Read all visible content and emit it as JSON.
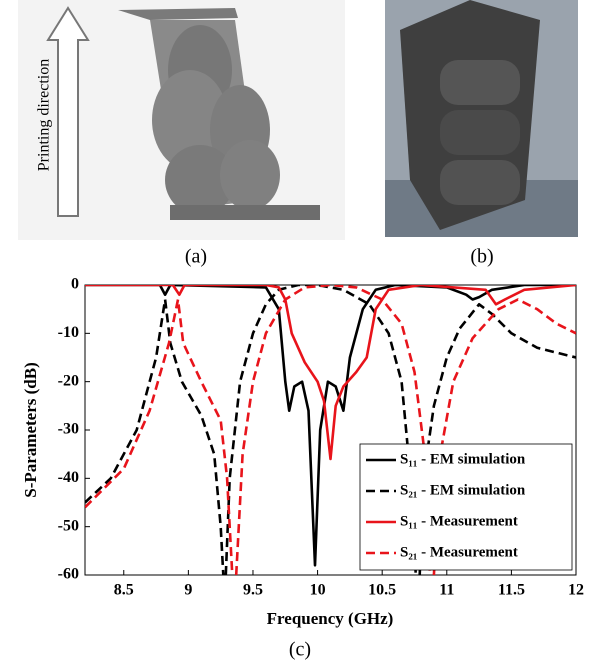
{
  "panels": {
    "printing_direction": "Printing direction",
    "label_a": "(a)",
    "label_b": "(b)",
    "label_c": "(c)"
  },
  "chart_data": {
    "type": "line",
    "x_label": "Frequency (GHz)",
    "y_label": "S-Parameters (dB)",
    "xlim": [
      8.2,
      12
    ],
    "ylim": [
      -60,
      0
    ],
    "xticks": [
      8.5,
      9,
      9.5,
      10,
      10.5,
      11,
      11.5,
      12
    ],
    "yticks": [
      -60,
      -50,
      -40,
      -30,
      -20,
      -10,
      0
    ],
    "legend": "lower-right",
    "series": [
      {
        "name": "S₁₁ - EM simulation",
        "color": "#000000",
        "dashed": false,
        "x": [
          8.2,
          8.78,
          8.82,
          8.86,
          9.6,
          9.7,
          9.75,
          9.78,
          9.82,
          9.88,
          9.93,
          9.98,
          10.02,
          10.08,
          10.14,
          10.2,
          10.25,
          10.35,
          10.45,
          10.6,
          11.0,
          11.15,
          11.2,
          11.25,
          11.35,
          11.6,
          12
        ],
        "values": [
          0,
          0,
          -2,
          0,
          -0.5,
          -5,
          -20,
          -26,
          -21,
          -20,
          -26,
          -58,
          -30,
          -20,
          -21,
          -26,
          -15,
          -5,
          -1,
          0,
          -0.5,
          -2,
          -3,
          -2.5,
          -1,
          0,
          0
        ]
      },
      {
        "name": "S₂₁ - EM simulation",
        "color": "#000000",
        "dashed": true,
        "x": [
          8.2,
          8.4,
          8.6,
          8.75,
          8.82,
          8.86,
          8.95,
          9.1,
          9.2,
          9.25,
          9.27,
          null,
          9.29,
          9.32,
          9.4,
          9.5,
          9.6,
          9.7,
          9.85,
          10.0,
          10.2,
          10.4,
          10.55,
          10.65,
          10.72,
          10.76,
          null,
          10.79,
          10.82,
          10.9,
          11.0,
          11.1,
          11.25,
          11.35,
          11.5,
          11.7,
          12
        ],
        "values": [
          -45,
          -40,
          -30,
          -15,
          -3,
          -12,
          -20,
          -27,
          -35,
          -50,
          -60,
          null,
          -60,
          -40,
          -20,
          -10,
          -4,
          -1,
          0,
          0,
          -1,
          -4,
          -10,
          -20,
          -40,
          -60,
          null,
          -60,
          -40,
          -25,
          -15,
          -9,
          -4,
          -6,
          -10,
          -13,
          -15
        ]
      },
      {
        "name": "S₁₁ - Measurement",
        "color": "#e8141b",
        "dashed": false,
        "x": [
          8.2,
          8.88,
          8.93,
          8.97,
          9.6,
          9.7,
          9.75,
          9.8,
          9.9,
          10.0,
          10.05,
          10.1,
          10.14,
          10.2,
          10.3,
          10.38,
          10.45,
          10.55,
          10.8,
          11.3,
          11.38,
          11.45,
          11.6,
          12
        ],
        "values": [
          0,
          0,
          -2,
          0,
          0,
          -0.5,
          -3,
          -10,
          -16,
          -20,
          -24,
          -36,
          -25,
          -21,
          -18,
          -15,
          -5,
          -1,
          0,
          -1,
          -4,
          -3,
          -1,
          0
        ]
      },
      {
        "name": "S₂₁ - Measurement",
        "color": "#e8141b",
        "dashed": true,
        "x": [
          8.2,
          8.5,
          8.7,
          8.85,
          8.92,
          8.96,
          9.1,
          9.25,
          9.3,
          9.34,
          null,
          9.37,
          9.42,
          9.5,
          9.6,
          9.75,
          9.9,
          10.1,
          10.3,
          10.5,
          10.65,
          10.75,
          10.83,
          10.87,
          null,
          10.9,
          10.95,
          11.05,
          11.2,
          11.4,
          11.55,
          11.7,
          11.85,
          12
        ],
        "values": [
          -46,
          -38,
          -26,
          -12,
          -3,
          -12,
          -20,
          -28,
          -40,
          -60,
          null,
          -60,
          -35,
          -20,
          -10,
          -3,
          -0.5,
          0,
          -0.5,
          -3,
          -8,
          -18,
          -35,
          -60,
          null,
          -60,
          -35,
          -20,
          -11,
          -5,
          -3,
          -5,
          -8,
          -10
        ]
      }
    ]
  }
}
